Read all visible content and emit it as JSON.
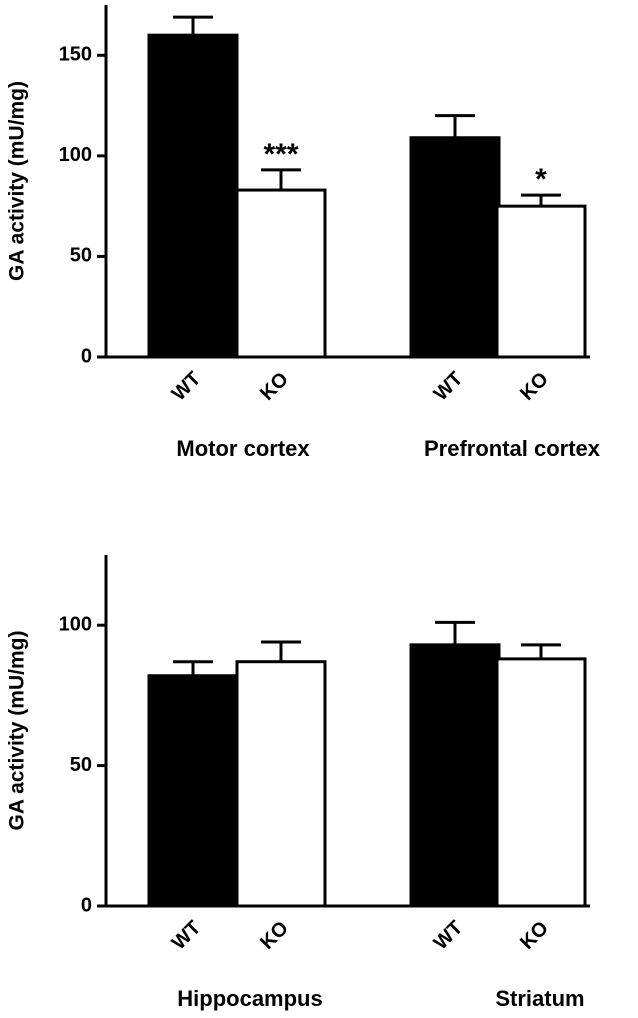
{
  "chart_data": [
    {
      "type": "bar",
      "ylabel": "GA activity (mU/mg)",
      "categories": [
        "WT",
        "KO",
        "WT",
        "KO"
      ],
      "groups": [
        "Motor cortex",
        "Prefrontal cortex"
      ],
      "values": [
        160,
        83,
        109,
        75
      ],
      "errors": [
        9,
        10,
        11,
        5.5
      ],
      "colors": [
        "#000000",
        "#ffffff",
        "#000000",
        "#ffffff"
      ],
      "annotations": [
        null,
        "***",
        null,
        "*"
      ],
      "ylim": [
        0,
        175
      ],
      "yticks": [
        0,
        50,
        100,
        150
      ]
    },
    {
      "type": "bar",
      "ylabel": "GA activity (mU/mg)",
      "categories": [
        "WT",
        "KO",
        "WT",
        "KO"
      ],
      "groups": [
        "Hippocampus",
        "Striatum"
      ],
      "values": [
        82,
        87,
        93,
        88
      ],
      "errors": [
        5,
        7,
        8,
        5
      ],
      "colors": [
        "#000000",
        "#ffffff",
        "#000000",
        "#ffffff"
      ],
      "annotations": [
        null,
        null,
        null,
        null
      ],
      "ylim": [
        0,
        125
      ],
      "yticks": [
        0,
        50,
        100
      ]
    }
  ]
}
